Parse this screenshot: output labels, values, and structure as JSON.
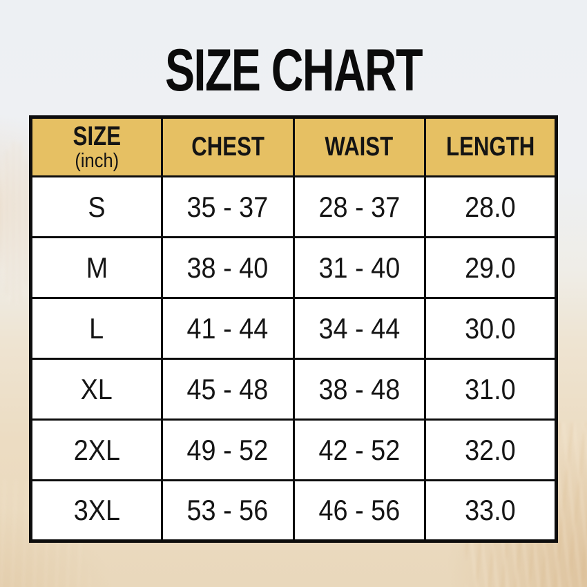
{
  "title": "SIZE CHART",
  "table": {
    "header": {
      "size_label": "SIZE",
      "size_sublabel": "(inch)",
      "chest_label": "CHEST",
      "waist_label": "WAIST",
      "length_label": "LENGTH"
    },
    "rows": [
      {
        "size": "S",
        "chest": "35 - 37",
        "waist": "28 - 37",
        "length": "28.0"
      },
      {
        "size": "M",
        "chest": "38 - 40",
        "waist": "31 - 40",
        "length": "29.0"
      },
      {
        "size": "L",
        "chest": "41 - 44",
        "waist": "34 - 44",
        "length": "30.0"
      },
      {
        "size": "XL",
        "chest": "45 - 48",
        "waist": "38 - 48",
        "length": "31.0"
      },
      {
        "size": "2XL",
        "chest": "49 - 52",
        "waist": "42 - 52",
        "length": "32.0"
      },
      {
        "size": "3XL",
        "chest": "53 - 56",
        "waist": "46 - 56",
        "length": "33.0"
      }
    ]
  },
  "chart_data": {
    "type": "table",
    "title": "SIZE CHART",
    "unit": "inch",
    "columns": [
      "SIZE (inch)",
      "CHEST",
      "WAIST",
      "LENGTH"
    ],
    "rows": [
      [
        "S",
        "35 - 37",
        "28 - 37",
        "28.0"
      ],
      [
        "M",
        "38 - 40",
        "31 - 40",
        "29.0"
      ],
      [
        "L",
        "41 - 44",
        "34 - 44",
        "30.0"
      ],
      [
        "XL",
        "45 - 48",
        "38 - 48",
        "31.0"
      ],
      [
        "2XL",
        "49 - 52",
        "42 - 52",
        "32.0"
      ],
      [
        "3XL",
        "53 - 56",
        "46 - 56",
        "33.0"
      ]
    ]
  },
  "colors": {
    "header_bg": "#e6c063",
    "border": "#0d0d0d",
    "cell_bg": "#ffffff",
    "sky": "#edf0f3",
    "sand": "#e9d8bc",
    "title_text": "#0b0b0b"
  }
}
